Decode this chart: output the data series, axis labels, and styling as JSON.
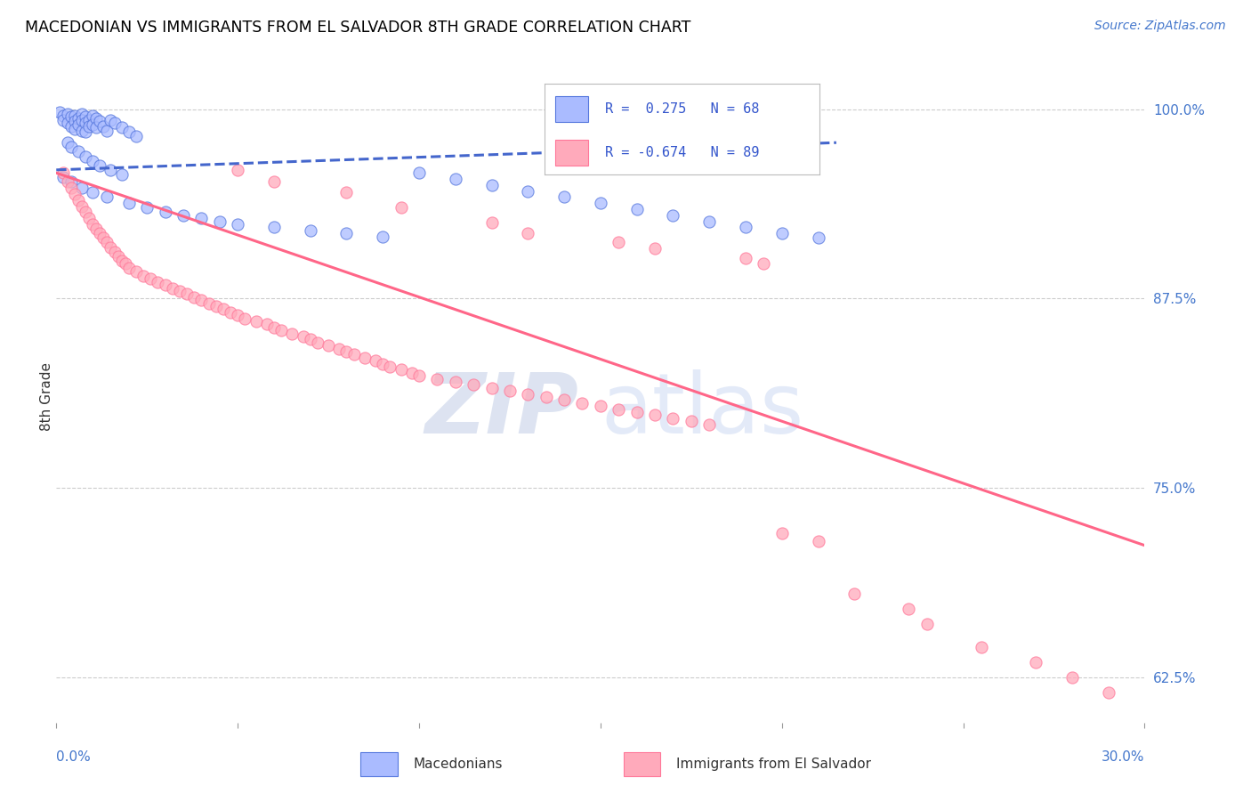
{
  "title": "MACEDONIAN VS IMMIGRANTS FROM EL SALVADOR 8TH GRADE CORRELATION CHART",
  "source": "Source: ZipAtlas.com",
  "ylabel": "8th Grade",
  "xlim": [
    0.0,
    0.3
  ],
  "ylim": [
    0.595,
    1.025
  ],
  "yticks": [
    0.625,
    0.75,
    0.875,
    1.0
  ],
  "ytick_labels": [
    "62.5%",
    "75.0%",
    "87.5%",
    "100.0%"
  ],
  "legend_blue_r": "R =  0.275",
  "legend_blue_n": "N = 68",
  "legend_pink_r": "R = -0.674",
  "legend_pink_n": "N = 89",
  "blue_fill": "#AABBFF",
  "blue_edge": "#5577DD",
  "pink_fill": "#FFAABB",
  "pink_edge": "#FF7799",
  "blue_line_color": "#4466CC",
  "pink_line_color": "#FF6688",
  "blue_scatter": [
    [
      0.001,
      0.998
    ],
    [
      0.002,
      0.996
    ],
    [
      0.002,
      0.993
    ],
    [
      0.003,
      0.997
    ],
    [
      0.003,
      0.991
    ],
    [
      0.004,
      0.995
    ],
    [
      0.004,
      0.989
    ],
    [
      0.005,
      0.996
    ],
    [
      0.005,
      0.992
    ],
    [
      0.005,
      0.987
    ],
    [
      0.006,
      0.994
    ],
    [
      0.006,
      0.99
    ],
    [
      0.007,
      0.997
    ],
    [
      0.007,
      0.993
    ],
    [
      0.007,
      0.986
    ],
    [
      0.008,
      0.995
    ],
    [
      0.008,
      0.991
    ],
    [
      0.008,
      0.985
    ],
    [
      0.009,
      0.993
    ],
    [
      0.009,
      0.989
    ],
    [
      0.01,
      0.996
    ],
    [
      0.01,
      0.99
    ],
    [
      0.011,
      0.994
    ],
    [
      0.011,
      0.988
    ],
    [
      0.012,
      0.992
    ],
    [
      0.013,
      0.989
    ],
    [
      0.014,
      0.986
    ],
    [
      0.015,
      0.993
    ],
    [
      0.016,
      0.991
    ],
    [
      0.018,
      0.988
    ],
    [
      0.02,
      0.985
    ],
    [
      0.022,
      0.982
    ],
    [
      0.003,
      0.978
    ],
    [
      0.004,
      0.975
    ],
    [
      0.006,
      0.972
    ],
    [
      0.008,
      0.969
    ],
    [
      0.01,
      0.966
    ],
    [
      0.012,
      0.963
    ],
    [
      0.015,
      0.96
    ],
    [
      0.018,
      0.957
    ],
    [
      0.002,
      0.955
    ],
    [
      0.004,
      0.952
    ],
    [
      0.007,
      0.948
    ],
    [
      0.01,
      0.945
    ],
    [
      0.014,
      0.942
    ],
    [
      0.02,
      0.938
    ],
    [
      0.025,
      0.935
    ],
    [
      0.03,
      0.932
    ],
    [
      0.035,
      0.93
    ],
    [
      0.04,
      0.928
    ],
    [
      0.045,
      0.926
    ],
    [
      0.05,
      0.924
    ],
    [
      0.06,
      0.922
    ],
    [
      0.07,
      0.92
    ],
    [
      0.08,
      0.918
    ],
    [
      0.09,
      0.916
    ],
    [
      0.1,
      0.958
    ],
    [
      0.11,
      0.954
    ],
    [
      0.12,
      0.95
    ],
    [
      0.13,
      0.946
    ],
    [
      0.14,
      0.942
    ],
    [
      0.15,
      0.938
    ],
    [
      0.16,
      0.934
    ],
    [
      0.17,
      0.93
    ],
    [
      0.18,
      0.926
    ],
    [
      0.19,
      0.922
    ],
    [
      0.2,
      0.918
    ],
    [
      0.21,
      0.915
    ]
  ],
  "pink_scatter": [
    [
      0.002,
      0.958
    ],
    [
      0.003,
      0.952
    ],
    [
      0.004,
      0.948
    ],
    [
      0.005,
      0.944
    ],
    [
      0.006,
      0.94
    ],
    [
      0.007,
      0.936
    ],
    [
      0.008,
      0.932
    ],
    [
      0.009,
      0.928
    ],
    [
      0.01,
      0.924
    ],
    [
      0.011,
      0.921
    ],
    [
      0.012,
      0.918
    ],
    [
      0.013,
      0.915
    ],
    [
      0.014,
      0.912
    ],
    [
      0.015,
      0.909
    ],
    [
      0.016,
      0.906
    ],
    [
      0.017,
      0.903
    ],
    [
      0.018,
      0.9
    ],
    [
      0.019,
      0.898
    ],
    [
      0.02,
      0.895
    ],
    [
      0.022,
      0.893
    ],
    [
      0.024,
      0.89
    ],
    [
      0.026,
      0.888
    ],
    [
      0.028,
      0.886
    ],
    [
      0.03,
      0.884
    ],
    [
      0.032,
      0.882
    ],
    [
      0.034,
      0.88
    ],
    [
      0.036,
      0.878
    ],
    [
      0.038,
      0.876
    ],
    [
      0.04,
      0.874
    ],
    [
      0.042,
      0.872
    ],
    [
      0.044,
      0.87
    ],
    [
      0.046,
      0.868
    ],
    [
      0.048,
      0.866
    ],
    [
      0.05,
      0.864
    ],
    [
      0.052,
      0.862
    ],
    [
      0.055,
      0.86
    ],
    [
      0.058,
      0.858
    ],
    [
      0.06,
      0.856
    ],
    [
      0.062,
      0.854
    ],
    [
      0.065,
      0.852
    ],
    [
      0.068,
      0.85
    ],
    [
      0.07,
      0.848
    ],
    [
      0.072,
      0.846
    ],
    [
      0.075,
      0.844
    ],
    [
      0.078,
      0.842
    ],
    [
      0.08,
      0.84
    ],
    [
      0.082,
      0.838
    ],
    [
      0.085,
      0.836
    ],
    [
      0.088,
      0.834
    ],
    [
      0.09,
      0.832
    ],
    [
      0.092,
      0.83
    ],
    [
      0.095,
      0.828
    ],
    [
      0.098,
      0.826
    ],
    [
      0.1,
      0.824
    ],
    [
      0.105,
      0.822
    ],
    [
      0.11,
      0.82
    ],
    [
      0.115,
      0.818
    ],
    [
      0.12,
      0.816
    ],
    [
      0.125,
      0.814
    ],
    [
      0.13,
      0.812
    ],
    [
      0.135,
      0.81
    ],
    [
      0.14,
      0.808
    ],
    [
      0.145,
      0.806
    ],
    [
      0.15,
      0.804
    ],
    [
      0.155,
      0.802
    ],
    [
      0.16,
      0.8
    ],
    [
      0.165,
      0.798
    ],
    [
      0.17,
      0.796
    ],
    [
      0.175,
      0.794
    ],
    [
      0.18,
      0.792
    ],
    [
      0.05,
      0.96
    ],
    [
      0.06,
      0.952
    ],
    [
      0.08,
      0.945
    ],
    [
      0.095,
      0.935
    ],
    [
      0.12,
      0.925
    ],
    [
      0.13,
      0.918
    ],
    [
      0.155,
      0.912
    ],
    [
      0.165,
      0.908
    ],
    [
      0.19,
      0.902
    ],
    [
      0.195,
      0.898
    ],
    [
      0.2,
      0.72
    ],
    [
      0.21,
      0.715
    ],
    [
      0.22,
      0.68
    ],
    [
      0.235,
      0.67
    ],
    [
      0.24,
      0.66
    ],
    [
      0.255,
      0.645
    ],
    [
      0.27,
      0.635
    ],
    [
      0.28,
      0.625
    ],
    [
      0.29,
      0.615
    ]
  ],
  "blue_trendline_x": [
    0.0,
    0.215
  ],
  "blue_trendline_y": [
    0.96,
    0.978
  ],
  "pink_trendline_x": [
    0.0,
    0.3
  ],
  "pink_trendline_y": [
    0.958,
    0.712
  ]
}
